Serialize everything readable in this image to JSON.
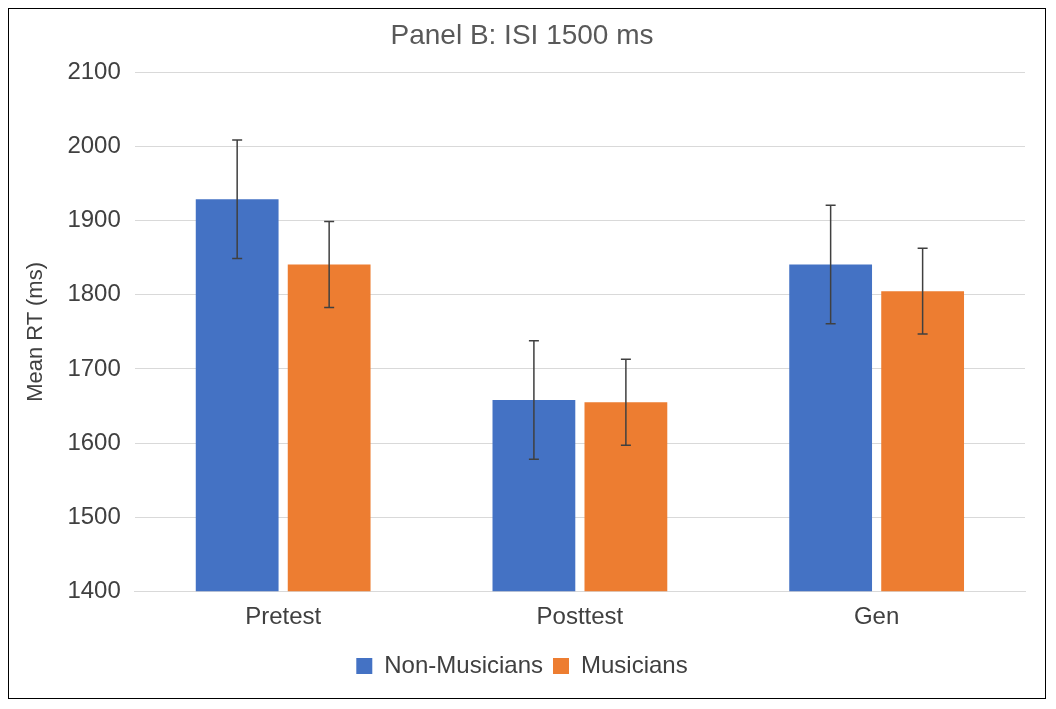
{
  "chart_data": {
    "type": "bar",
    "title": "Panel B: ISI 1500 ms",
    "ylabel": "Mean RT (ms)",
    "categories": [
      "Pretest",
      "Posttest",
      "Gen"
    ],
    "series": [
      {
        "name": "Non-Musicians",
        "color": "#4472c4",
        "values": [
          1929,
          1658,
          1841
        ],
        "errors": [
          80,
          80,
          80
        ]
      },
      {
        "name": "Musicians",
        "color": "#ed7d31",
        "values": [
          1841,
          1655,
          1805
        ],
        "errors": [
          58,
          58,
          58
        ]
      }
    ],
    "ylim": [
      1400,
      2100
    ],
    "yticks": [
      1400,
      1500,
      1600,
      1700,
      1800,
      1900,
      2000,
      2100
    ],
    "grid": "y",
    "legend": "bottom"
  }
}
